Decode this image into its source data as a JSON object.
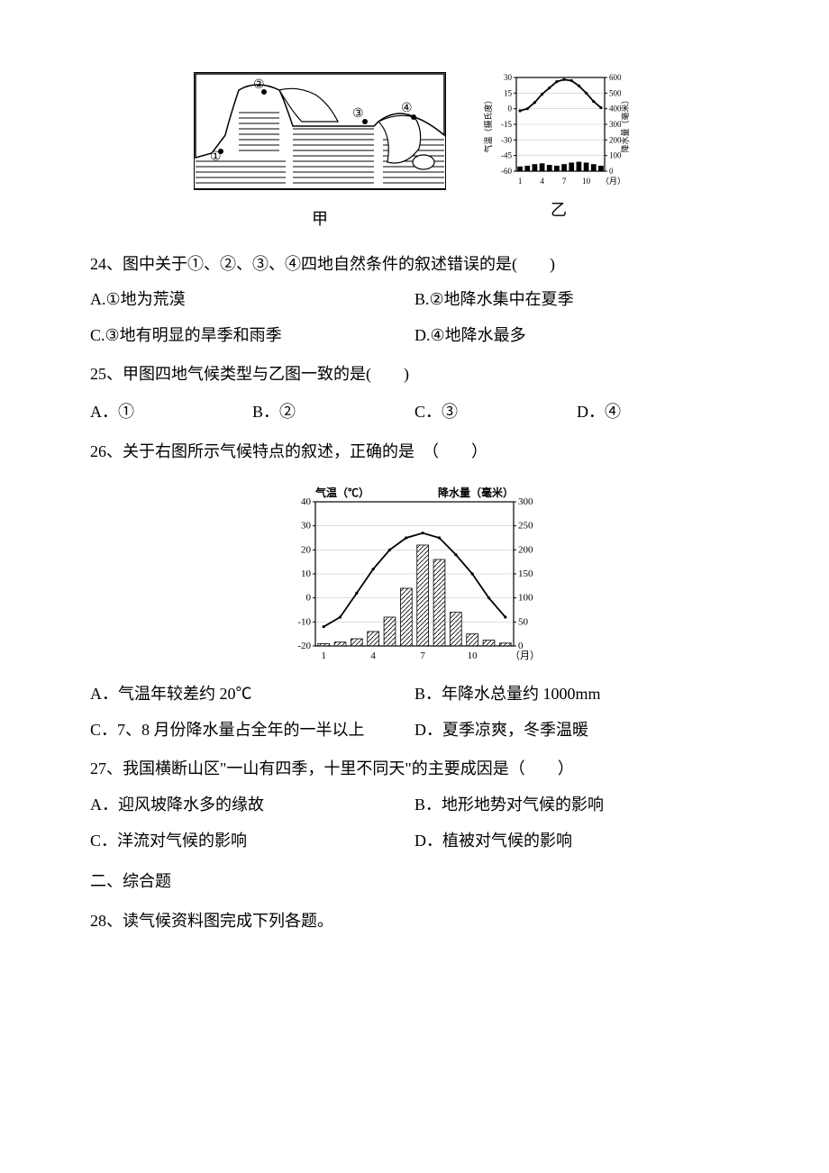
{
  "figures": {
    "map": {
      "label": "甲",
      "points": [
        "①",
        "②",
        "③",
        "④"
      ],
      "border_color": "#000000",
      "hatch_color": "#000000",
      "bg": "#ffffff"
    },
    "climograph_small": {
      "label": "乙",
      "left_axis_label": "气温（摄氏度）",
      "right_axis_label": "降水量（毫米）",
      "x_label": "（月）",
      "temp_ticks": [
        30,
        15,
        0,
        -15,
        -30,
        -45,
        -60
      ],
      "precip_ticks": [
        600,
        500,
        400,
        300,
        200,
        100,
        0
      ],
      "x_ticks": [
        1,
        4,
        7,
        10
      ],
      "temp_values": [
        -2,
        0,
        6,
        14,
        20,
        26,
        28,
        27,
        22,
        15,
        7,
        1
      ],
      "precip_values": [
        30,
        35,
        45,
        50,
        40,
        35,
        45,
        55,
        60,
        55,
        45,
        35
      ],
      "line_color": "#000000",
      "bar_color": "#000000",
      "bg": "#ffffff",
      "tick_fontsize": 9
    },
    "climograph_large": {
      "left_axis_label": "气温（℃）",
      "right_axis_label": "降水量（毫米）",
      "x_label": "（月）",
      "temp_ticks": [
        40,
        30,
        20,
        10,
        0,
        -10,
        -20
      ],
      "precip_ticks": [
        300,
        250,
        200,
        150,
        100,
        50,
        0
      ],
      "x_ticks": [
        1,
        4,
        7,
        10
      ],
      "temp_values": [
        -12,
        -8,
        2,
        12,
        20,
        25,
        27,
        25,
        18,
        10,
        0,
        -8
      ],
      "precip_values": [
        5,
        8,
        15,
        30,
        60,
        120,
        210,
        180,
        70,
        25,
        12,
        6
      ],
      "line_color": "#000000",
      "bar_fill": "#ffffff",
      "bar_stroke": "#000000",
      "hatch": true,
      "bg": "#ffffff",
      "tick_fontsize": 11
    }
  },
  "q24": {
    "stem": "24、图中关于①、②、③、④四地自然条件的叙述错误的是(　　)",
    "A": "A.①地为荒漠",
    "B": "B.②地降水集中在夏季",
    "C": "C.③地有明显的旱季和雨季",
    "D": "D.④地降水最多"
  },
  "q25": {
    "stem": "25、甲图四地气候类型与乙图一致的是(　　)",
    "A": "A．①",
    "B": "B．②",
    "C": "C．③",
    "D": "D．④"
  },
  "q26": {
    "stem": "26、关于右图所示气候特点的叙述，正确的是　（　　）",
    "A": "A．气温年较差约 20℃",
    "B": "B．年降水总量约 1000mm",
    "C": "C．7、8 月份降水量占全年的一半以上",
    "D": "D．夏季凉爽，冬季温暖"
  },
  "q27": {
    "stem": "27、我国横断山区\"一山有四季，十里不同天\"的主要成因是（　　）",
    "A": "A．迎风坡降水多的缘故",
    "B": "B．地形地势对气候的影响",
    "C": "C．洋流对气候的影响",
    "D": "D．植被对气候的影响"
  },
  "section2": "二、综合题",
  "q28": {
    "stem": "28、读气候资料图完成下列各题。"
  }
}
